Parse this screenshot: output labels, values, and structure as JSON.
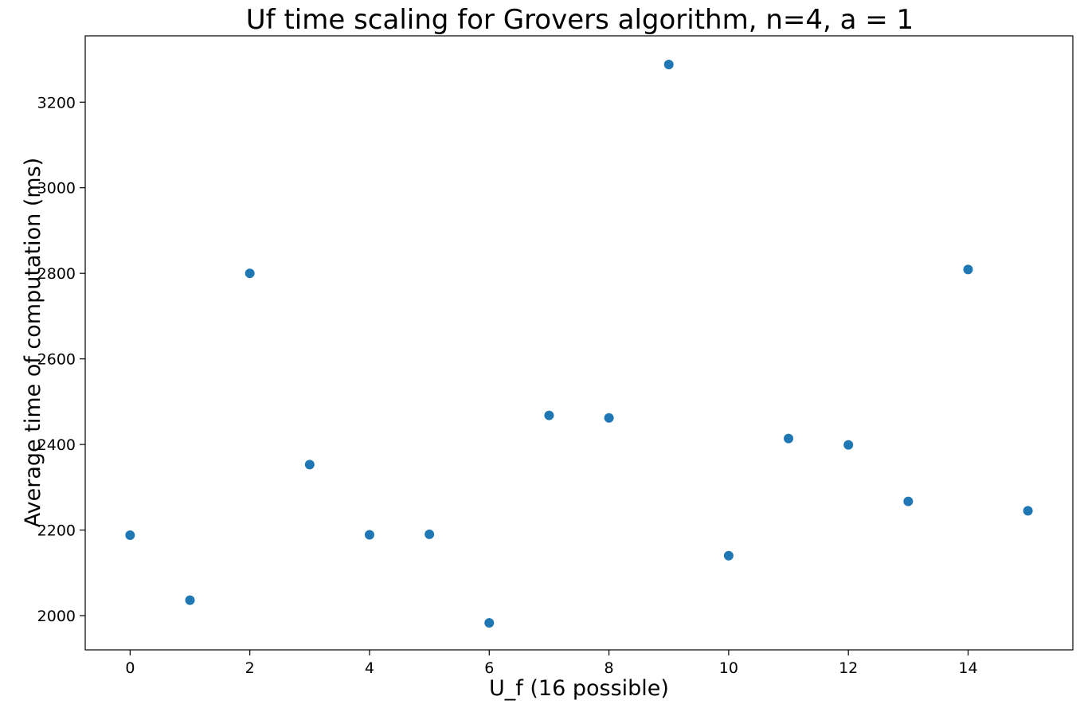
{
  "chart_data": {
    "type": "scatter",
    "title": "Uf time scaling for Grovers algorithm, n=4, a = 1",
    "xlabel": "U_f (16 possible)",
    "ylabel": "Average time of computation (ms)",
    "xlim": [
      -0.75,
      15.75
    ],
    "ylim": [
      1920,
      3355
    ],
    "xticks": [
      0,
      2,
      4,
      6,
      8,
      10,
      12,
      14
    ],
    "yticks": [
      2000,
      2200,
      2400,
      2600,
      2800,
      3000,
      3200
    ],
    "grid": false,
    "marker_color": "#1f77b4",
    "series": [
      {
        "x": [
          0,
          1,
          2,
          3,
          4,
          5,
          6,
          7,
          8,
          9,
          10,
          11,
          12,
          13,
          14,
          15
        ],
        "y": [
          2188,
          2036,
          2800,
          2353,
          2189,
          2190,
          1983,
          2468,
          2462,
          3288,
          2140,
          2414,
          2399,
          2267,
          2809,
          2245
        ]
      }
    ]
  }
}
